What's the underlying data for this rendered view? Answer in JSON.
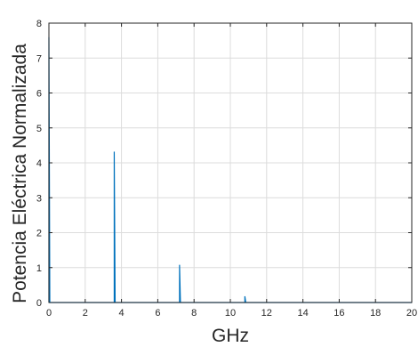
{
  "chart_data": {
    "type": "line",
    "xlabel": "GHz",
    "ylabel": "Potencia Eléctrica Normalizada",
    "xlim": [
      0,
      20
    ],
    "ylim": [
      0,
      8
    ],
    "xticks": [
      "0",
      "2",
      "4",
      "6",
      "8",
      "10",
      "12",
      "14",
      "16",
      "18",
      "20"
    ],
    "yticks": [
      "0",
      "1",
      "2",
      "3",
      "4",
      "5",
      "6",
      "7",
      "8"
    ],
    "grid": true,
    "series": [
      {
        "color": "#0072BD",
        "x": [
          0,
          0,
          0.05,
          3.6,
          3.6,
          3.65,
          7.2,
          7.2,
          7.25,
          10.8,
          10.8,
          10.85,
          20
        ],
        "y": [
          0,
          7.6,
          0,
          0,
          4.32,
          0,
          0,
          1.08,
          0,
          0,
          0.18,
          0,
          0
        ]
      }
    ]
  }
}
